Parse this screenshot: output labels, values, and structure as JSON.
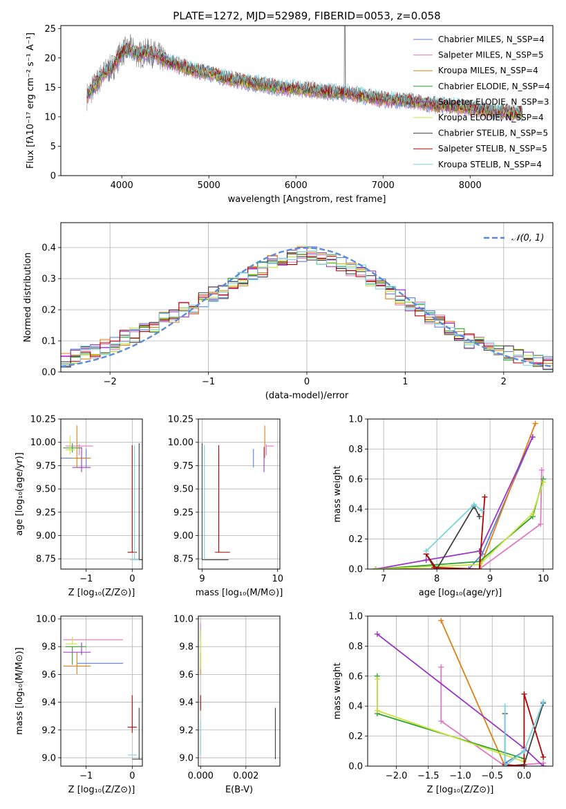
{
  "chart_data": [
    {
      "id": "spectrum",
      "type": "line",
      "title": "PLATE=1272, MJD=52989, FIBERID=0053, z=0.058",
      "xlabel": "wavelength [Angstrom, rest frame]",
      "ylabel": "Flux [fλ10⁻¹⁷ erg cm⁻² s⁻¹ A⁻¹]",
      "xlim": [
        3300,
        8950
      ],
      "ylim": [
        0,
        25.5
      ],
      "xticks": [
        4000,
        5000,
        6000,
        7000,
        8000
      ],
      "yticks": [
        0,
        5,
        10,
        15,
        20,
        25
      ],
      "grid": false,
      "legend_position": "top-right",
      "data_color": "#808080",
      "continuum": {
        "x": [
          3600,
          3700,
          3800,
          3900,
          4000,
          4100,
          4200,
          4300,
          4400,
          4500,
          4600,
          4800,
          5000,
          5200,
          5400,
          5600,
          5800,
          6000,
          6200,
          6400,
          6600,
          6800,
          7000,
          7200,
          7400,
          7600,
          7800,
          8000,
          8200,
          8400,
          8600
        ],
        "y": [
          13.5,
          15.5,
          17.5,
          18.5,
          21,
          21.5,
          20.5,
          21,
          20.5,
          19.5,
          19,
          18,
          17.5,
          16.5,
          16,
          15.5,
          15,
          14.8,
          14.5,
          14.2,
          14,
          13.5,
          13,
          12.8,
          12.5,
          12,
          11.8,
          11.5,
          11,
          10.8,
          10.5
        ]
      },
      "series": [
        {
          "name": "Chabrier MILES, N_SSP=4",
          "color": "#5b7fd6"
        },
        {
          "name": "Salpeter MILES, N_SSP=5",
          "color": "#e377c2"
        },
        {
          "name": "Kroupa MILES, N_SSP=4",
          "color": "#e07f10"
        },
        {
          "name": "Chabrier ELODIE, N_SSP=4",
          "color": "#2ca02c"
        },
        {
          "name": "Salpeter ELODIE, N_SSP=3",
          "color": "#9b34c8"
        },
        {
          "name": "Kroupa ELODIE, N_SSP=4",
          "color": "#c7e33a"
        },
        {
          "name": "Chabrier STELIB, N_SSP=5",
          "color": "#404040"
        },
        {
          "name": "Salpeter STELIB, N_SSP=5",
          "color": "#b30000"
        },
        {
          "name": "Kroupa STELIB, N_SSP=4",
          "color": "#77d4e0"
        }
      ]
    },
    {
      "id": "residuals",
      "type": "line",
      "xlabel": "(data-model)/error",
      "ylabel": "Normed distribution",
      "xlim": [
        -2.5,
        2.5
      ],
      "ylim": [
        0,
        0.48
      ],
      "xticks": [
        -2,
        -1,
        0,
        1,
        2
      ],
      "yticks": [
        0.0,
        0.1,
        0.2,
        0.3,
        0.4
      ],
      "grid": true,
      "legend_position": "top-right",
      "normal_curve": {
        "name": "𝒩(0, 1)",
        "color": "#5b8ad6"
      },
      "bin_width": 0.1,
      "base_histogram": [
        0.04,
        0.05,
        0.06,
        0.07,
        0.08,
        0.09,
        0.11,
        0.12,
        0.14,
        0.15,
        0.17,
        0.18,
        0.2,
        0.21,
        0.23,
        0.25,
        0.26,
        0.28,
        0.3,
        0.32,
        0.33,
        0.35,
        0.36,
        0.37,
        0.38,
        0.38,
        0.37,
        0.36,
        0.35,
        0.33,
        0.32,
        0.3,
        0.28,
        0.26,
        0.24,
        0.22,
        0.2,
        0.18,
        0.16,
        0.14,
        0.12,
        0.1,
        0.09,
        0.08,
        0.07,
        0.06,
        0.05,
        0.04,
        0.03,
        0.03
      ]
    },
    {
      "id": "age-vs-Z",
      "type": "scatter",
      "xlabel": "Z [log₁₀(Z/Z⊙)]",
      "ylabel": "age  [log₁₀(age/yr)]",
      "xlim": [
        -1.55,
        0.22
      ],
      "ylim": [
        8.64,
        10.25
      ],
      "xticks": [
        -1,
        0
      ],
      "yticks": [
        8.75,
        9.0,
        9.25,
        9.5,
        9.75,
        10.0,
        10.25
      ],
      "grid": true,
      "points": [
        {
          "x": -1.0,
          "y": 9.83,
          "x_err": [
            0.6,
            0.0
          ],
          "y_err": [
            0.1,
            0.1
          ],
          "color": "#5b7fd6"
        },
        {
          "x": -1.15,
          "y": 9.96,
          "x_err": [
            0.3,
            0.3
          ],
          "y_err": [
            0.1,
            0.02
          ],
          "color": "#e377c2"
        },
        {
          "x": -1.2,
          "y": 9.83,
          "x_err": [
            0.1,
            0.3
          ],
          "y_err": [
            0.1,
            0.35
          ],
          "color": "#e07f10"
        },
        {
          "x": -1.3,
          "y": 9.94,
          "x_err": [
            0.2,
            0.2
          ],
          "y_err": [
            0.05,
            0.05
          ],
          "color": "#2ca02c"
        },
        {
          "x": -1.1,
          "y": 9.73,
          "x_err": [
            0.2,
            0.2
          ],
          "y_err": [
            0.05,
            0.22
          ],
          "color": "#9b34c8"
        },
        {
          "x": -1.35,
          "y": 9.92,
          "x_err": [
            0.1,
            0.1
          ],
          "y_err": [
            0.05,
            0.15
          ],
          "color": "#c7e33a"
        },
        {
          "x": 0.15,
          "y": 8.74,
          "x_err": [
            0.1,
            0.1
          ],
          "y_err": [
            0.0,
            1.25
          ],
          "color": "#404040"
        },
        {
          "x": 0.0,
          "y": 8.82,
          "x_err": [
            0.1,
            0.1
          ],
          "y_err": [
            0.0,
            1.15
          ],
          "color": "#b30000"
        },
        {
          "x": 0.05,
          "y": 8.74,
          "x_err": [
            0.1,
            0.1
          ],
          "y_err": [
            0.0,
            1.23
          ],
          "color": "#77d4e0"
        }
      ]
    },
    {
      "id": "age-vs-mass",
      "type": "scatter",
      "xlabel": "mass [log₁₀(M/M⊙)]",
      "ylabel": "",
      "xlim": [
        8.95,
        10.03
      ],
      "ylim": [
        8.64,
        10.25
      ],
      "xticks": [
        9,
        10
      ],
      "yticks": [
        8.75,
        9.0,
        9.25,
        9.5,
        9.75,
        10.0,
        10.25
      ],
      "grid": true,
      "points": [
        {
          "x": 9.68,
          "y": 9.83,
          "x_err": [
            0.0,
            0.0
          ],
          "y_err": [
            0.1,
            0.1
          ],
          "color": "#5b7fd6"
        },
        {
          "x": 9.85,
          "y": 9.96,
          "x_err": [
            0.0,
            0.1
          ],
          "y_err": [
            0.1,
            0.02
          ],
          "color": "#e377c2"
        },
        {
          "x": 9.83,
          "y": 9.83,
          "x_err": [
            0.0,
            0.0
          ],
          "y_err": [
            0.0,
            0.35
          ],
          "color": "#e07f10"
        },
        {
          "x": 9.8,
          "y": 9.94,
          "x_err": [
            0.0,
            0.0
          ],
          "y_err": [
            0.0,
            0.0
          ],
          "color": "#2ca02c"
        },
        {
          "x": 9.82,
          "y": 9.73,
          "x_err": [
            0.0,
            0.0
          ],
          "y_err": [
            0.05,
            0.22
          ],
          "color": "#9b34c8"
        },
        {
          "x": 9.82,
          "y": 9.92,
          "x_err": [
            0.0,
            0.0
          ],
          "y_err": [
            0.0,
            0.0
          ],
          "color": "#c7e33a"
        },
        {
          "x": 9.0,
          "y": 8.74,
          "x_err": [
            0.0,
            0.35
          ],
          "y_err": [
            0.0,
            1.25
          ],
          "color": "#404040"
        },
        {
          "x": 9.22,
          "y": 8.82,
          "x_err": [
            0.05,
            0.15
          ],
          "y_err": [
            0.0,
            1.15
          ],
          "color": "#b30000"
        },
        {
          "x": 9.03,
          "y": 8.74,
          "x_err": [
            0.0,
            0.0
          ],
          "y_err": [
            0.0,
            1.23
          ],
          "color": "#77d4e0"
        }
      ]
    },
    {
      "id": "mass-weight-vs-age",
      "type": "line",
      "xlabel": "age  [log₁₀(age/yr)]",
      "ylabel": "mass weight",
      "xlim": [
        6.7,
        10.18
      ],
      "ylim": [
        0,
        1.0
      ],
      "xticks": [
        7,
        8,
        9,
        10
      ],
      "yticks": [
        0.0,
        0.2,
        0.4,
        0.6,
        0.8,
        1.0
      ],
      "grid": true,
      "series": [
        {
          "color": "#5b7fd6",
          "x": [
            6.85,
            8.6,
            8.85,
            9.8
          ],
          "y": [
            0.0,
            0.0,
            0.1,
            0.88
          ]
        },
        {
          "color": "#e377c2",
          "x": [
            6.85,
            8.8,
            9.95,
            9.97
          ],
          "y": [
            0.0,
            0.0,
            0.3,
            0.66
          ]
        },
        {
          "color": "#e07f10",
          "x": [
            6.85,
            8.8,
            9.85
          ],
          "y": [
            0.0,
            0.0,
            0.97
          ]
        },
        {
          "color": "#2ca02c",
          "x": [
            6.85,
            8.8,
            9.8,
            10.0
          ],
          "y": [
            0.0,
            0.05,
            0.35,
            0.6
          ]
        },
        {
          "color": "#9b34c8",
          "x": [
            6.85,
            7.8,
            8.8,
            9.8
          ],
          "y": [
            0.0,
            0.06,
            0.12,
            0.88
          ]
        },
        {
          "color": "#c7e33a",
          "x": [
            6.85,
            8.8,
            9.8,
            10.0
          ],
          "y": [
            0.0,
            0.03,
            0.37,
            0.58
          ]
        },
        {
          "color": "#404040",
          "x": [
            7.8,
            8.0,
            8.7,
            8.8
          ],
          "y": [
            0.1,
            0.0,
            0.42,
            0.35
          ]
        },
        {
          "color": "#b30000",
          "x": [
            7.8,
            7.95,
            8.8,
            8.9
          ],
          "y": [
            0.1,
            0.01,
            0.0,
            0.48
          ]
        },
        {
          "color": "#77d4e0",
          "x": [
            7.8,
            8.7,
            8.85
          ],
          "y": [
            0.12,
            0.43,
            0.39
          ]
        }
      ]
    },
    {
      "id": "mass-vs-Z",
      "type": "scatter",
      "xlabel": "Z [log₁₀(Z/Z⊙)]",
      "ylabel": "mass [log₁₀(M/M⊙)]",
      "xlim": [
        -1.55,
        0.22
      ],
      "ylim": [
        8.94,
        10.02
      ],
      "xticks": [
        -1,
        0
      ],
      "yticks": [
        9.0,
        9.2,
        9.4,
        9.6,
        9.8,
        10.0
      ],
      "grid": true,
      "points": [
        {
          "x": -1.1,
          "y": 9.68,
          "x_err": [
            0.1,
            0.9
          ],
          "y_err": [
            0.0,
            0.0
          ],
          "color": "#5b7fd6"
        },
        {
          "x": -1.3,
          "y": 9.85,
          "x_err": [
            0.2,
            1.1
          ],
          "y_err": [
            0.0,
            0.0
          ],
          "color": "#e377c2"
        },
        {
          "x": -1.2,
          "y": 9.66,
          "x_err": [
            0.3,
            0.3
          ],
          "y_err": [
            0.06,
            0.1
          ],
          "color": "#e07f10"
        },
        {
          "x": -1.3,
          "y": 9.8,
          "x_err": [
            0.15,
            0.3
          ],
          "y_err": [
            0.13,
            0.0
          ],
          "color": "#2ca02c"
        },
        {
          "x": -1.1,
          "y": 9.76,
          "x_err": [
            0.4,
            0.2
          ],
          "y_err": [
            0.02,
            0.07
          ],
          "color": "#9b34c8"
        },
        {
          "x": -1.3,
          "y": 9.82,
          "x_err": [
            0.15,
            0.1
          ],
          "y_err": [
            0.0,
            0.05
          ],
          "color": "#c7e33a"
        },
        {
          "x": 0.15,
          "y": 8.99,
          "x_err": [
            0.15,
            0.15
          ],
          "y_err": [
            0.0,
            0.37
          ],
          "color": "#404040"
        },
        {
          "x": 0.0,
          "y": 9.22,
          "x_err": [
            0.1,
            0.1
          ],
          "y_err": [
            0.04,
            0.23
          ],
          "color": "#b30000"
        },
        {
          "x": 0.0,
          "y": 9.02,
          "x_err": [
            0.1,
            0.1
          ],
          "y_err": [
            0.0,
            0.0
          ],
          "color": "#77d4e0"
        }
      ]
    },
    {
      "id": "mass-vs-ebv",
      "type": "scatter",
      "xlabel": "E(B-V)",
      "ylabel": "",
      "xlim": [
        -0.0001,
        0.0035
      ],
      "ylim": [
        8.94,
        10.02
      ],
      "xticks": [
        0.0,
        0.002
      ],
      "yticks": [
        9.0,
        9.2,
        9.4,
        9.6,
        9.8,
        10.0
      ],
      "grid": true,
      "points": [
        {
          "x": 0.0,
          "y": 9.68,
          "x_err": [
            0.0,
            0.0
          ],
          "y_err": [
            0.0,
            0.0
          ],
          "color": "#5b7fd6"
        },
        {
          "x": 0.0,
          "y": 9.85,
          "x_err": [
            0.0,
            0.0
          ],
          "y_err": [
            0.0,
            0.12
          ],
          "color": "#e377c2"
        },
        {
          "x": 0.0,
          "y": 9.66,
          "x_err": [
            0.0,
            0.0
          ],
          "y_err": [
            0.06,
            0.1
          ],
          "color": "#e07f10"
        },
        {
          "x": 0.0,
          "y": 9.8,
          "x_err": [
            0.0,
            0.0
          ],
          "y_err": [
            0.0,
            0.0
          ],
          "color": "#2ca02c"
        },
        {
          "x": 0.0,
          "y": 9.76,
          "x_err": [
            0.0,
            0.0
          ],
          "y_err": [
            0.0,
            0.0
          ],
          "color": "#9b34c8"
        },
        {
          "x": 0.0,
          "y": 9.82,
          "x_err": [
            0.0,
            0.0
          ],
          "y_err": [
            0.18,
            0.1
          ],
          "color": "#c7e33a"
        },
        {
          "x": 0.0033,
          "y": 8.99,
          "x_err": [
            0.0,
            0.0
          ],
          "y_err": [
            0.0,
            0.37
          ],
          "color": "#404040"
        },
        {
          "x": 0.0,
          "y": 9.4,
          "x_err": [
            0.0,
            0.0
          ],
          "y_err": [
            0.06,
            0.05
          ],
          "color": "#b30000"
        },
        {
          "x": 0.0,
          "y": 9.02,
          "x_err": [
            0.0,
            0.0
          ],
          "y_err": [
            0.0,
            0.25
          ],
          "color": "#77d4e0"
        }
      ]
    },
    {
      "id": "mass-weight-vs-Z",
      "type": "line",
      "xlabel": "Z [log₁₀(Z/Z⊙)]",
      "ylabel": "mass weight",
      "xlim": [
        -2.45,
        0.45
      ],
      "ylim": [
        0,
        1.0
      ],
      "xticks": [
        -2.0,
        -1.5,
        -1.0,
        -0.5,
        0.0
      ],
      "yticks": [
        0.0,
        0.2,
        0.4,
        0.6,
        0.8,
        1.0
      ],
      "grid": true,
      "series": [
        {
          "color": "#5b7fd6",
          "x": [
            -0.3,
            0.0
          ],
          "y": [
            0.02,
            0.1
          ]
        },
        {
          "color": "#e377c2",
          "x": [
            -1.3,
            -1.3,
            -0.3,
            0.3
          ],
          "y": [
            0.66,
            0.3,
            0.0,
            0.02
          ]
        },
        {
          "color": "#e07f10",
          "x": [
            -1.3,
            -0.3,
            0.0
          ],
          "y": [
            0.97,
            0.0,
            0.0
          ]
        },
        {
          "color": "#2ca02c",
          "x": [
            -2.3,
            -2.3,
            0.0
          ],
          "y": [
            0.6,
            0.35,
            0.05
          ]
        },
        {
          "color": "#9b34c8",
          "x": [
            -2.3,
            0.0,
            0.3
          ],
          "y": [
            0.88,
            0.12,
            0.0
          ]
        },
        {
          "color": "#c7e33a",
          "x": [
            -2.3,
            -2.3,
            0.0
          ],
          "y": [
            0.58,
            0.37,
            0.03
          ]
        },
        {
          "color": "#404040",
          "x": [
            -0.3,
            -0.3,
            0.0,
            0.3
          ],
          "y": [
            0.35,
            0.0,
            0.01,
            0.42
          ]
        },
        {
          "color": "#b30000",
          "x": [
            -0.3,
            0.0,
            0.0,
            0.3
          ],
          "y": [
            0.01,
            0.0,
            0.48,
            0.06
          ]
        },
        {
          "color": "#77d4e0",
          "x": [
            -0.3,
            -0.3,
            0.0,
            0.3
          ],
          "y": [
            0.4,
            0.0,
            0.1,
            0.43
          ]
        }
      ]
    }
  ]
}
